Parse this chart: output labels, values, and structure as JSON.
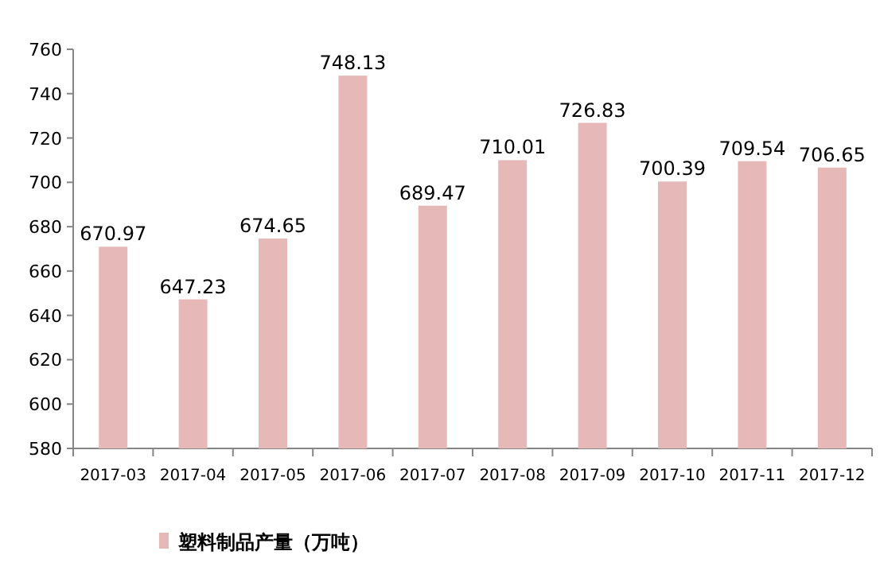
{
  "chart_data": {
    "type": "bar",
    "categories": [
      "2017-03",
      "2017-04",
      "2017-05",
      "2017-06",
      "2017-07",
      "2017-08",
      "2017-09",
      "2017-10",
      "2017-11",
      "2017-12"
    ],
    "series": [
      {
        "name": "塑料制品产量（万吨）",
        "color": "#e6b9b8",
        "values": [
          670.97,
          647.23,
          674.65,
          748.13,
          689.47,
          710.01,
          726.83,
          700.39,
          709.54,
          706.65
        ]
      }
    ],
    "ylim": [
      580,
      760
    ],
    "yticks": [
      580,
      600,
      620,
      640,
      660,
      680,
      700,
      720,
      740,
      760
    ],
    "data_labels": true,
    "legend": "bottom",
    "grid": false
  }
}
